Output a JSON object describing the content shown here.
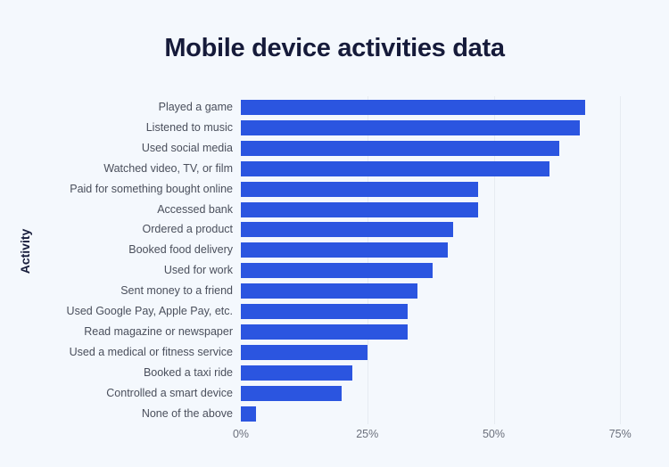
{
  "chart_data": {
    "type": "bar",
    "orientation": "horizontal",
    "title": "Mobile device activities data",
    "xlabel": "",
    "ylabel": "Activity",
    "xlim": [
      0,
      75
    ],
    "grid": true,
    "bar_color": "#2b55e0",
    "categories": [
      "Played a game",
      "Listened to music",
      "Used social media",
      "Watched video, TV, or film",
      "Paid for something bought online",
      "Accessed bank",
      "Ordered a product",
      "Booked food delivery",
      "Used for work",
      "Sent money to a friend",
      "Used Google Pay, Apple Pay, etc.",
      "Read magazine or newspaper",
      "Used a medical or fitness service",
      "Booked a taxi ride",
      "Controlled a smart device",
      "None of the above"
    ],
    "values": [
      68,
      67,
      63,
      61,
      47,
      47,
      42,
      41,
      38,
      35,
      33,
      33,
      25,
      22,
      20,
      3
    ],
    "x_ticks": [
      "0%",
      "25%",
      "50%",
      "75%"
    ],
    "x_tick_values": [
      0,
      25,
      50,
      75
    ]
  }
}
